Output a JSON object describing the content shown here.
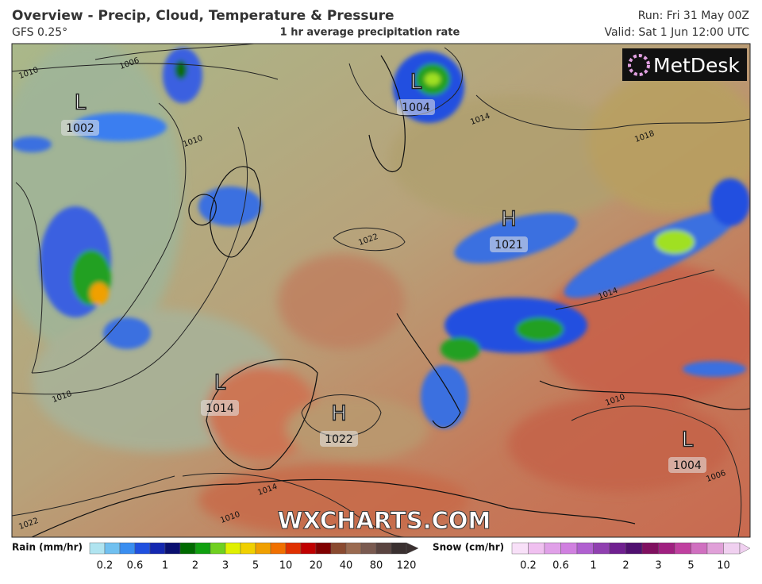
{
  "header": {
    "title": "Overview - Precip, Cloud, Temperature & Pressure",
    "model": "GFS 0.25°",
    "subtitle": "1 hr average precipitation rate",
    "run": "Run: Fri 31 May 00Z",
    "valid": "Valid: Sat 1 Jun 12:00 UTC"
  },
  "logo": "MetDesk",
  "watermark": "WXCHARTS.COM",
  "pressure_centers": [
    {
      "label": "L",
      "value": 1002
    },
    {
      "label": "L",
      "value": 1004
    },
    {
      "label": "H",
      "value": 1021
    },
    {
      "label": "L",
      "value": 1014
    },
    {
      "label": "H",
      "value": 1022
    },
    {
      "label": "L",
      "value": 1004
    }
  ],
  "isobar_labels": [
    1010,
    1006,
    1010,
    1014,
    1018,
    1022,
    1014,
    1018,
    1010,
    1014,
    1010,
    1022,
    1006
  ],
  "legend": {
    "rain": {
      "title": "Rain (mm/hr)",
      "ticks": [
        0.2,
        0.6,
        1,
        2,
        3,
        5,
        10,
        20,
        40,
        80,
        120
      ],
      "colors": [
        "#b0e4f0",
        "#70c0f0",
        "#3a8ef0",
        "#2050e0",
        "#1428b0",
        "#0a1070",
        "#006a00",
        "#10a010",
        "#70d020",
        "#e0f000",
        "#f0d000",
        "#f0a000",
        "#f07000",
        "#e03000",
        "#c00000",
        "#800000",
        "#8a4a30",
        "#9a6a50",
        "#7a5a50",
        "#5a4440",
        "#3a3030"
      ]
    },
    "snow": {
      "title": "Snow (cm/hr)",
      "ticks": [
        0.2,
        0.6,
        1,
        2,
        3,
        5,
        10
      ],
      "colors": [
        "#f8e0f8",
        "#f0c0f0",
        "#e0a0e8",
        "#d080e0",
        "#b060d0",
        "#9040b0",
        "#702090",
        "#501070",
        "#801060",
        "#a02080",
        "#c040a0",
        "#d070c0",
        "#e0a0d8",
        "#f0d0f0"
      ]
    }
  }
}
